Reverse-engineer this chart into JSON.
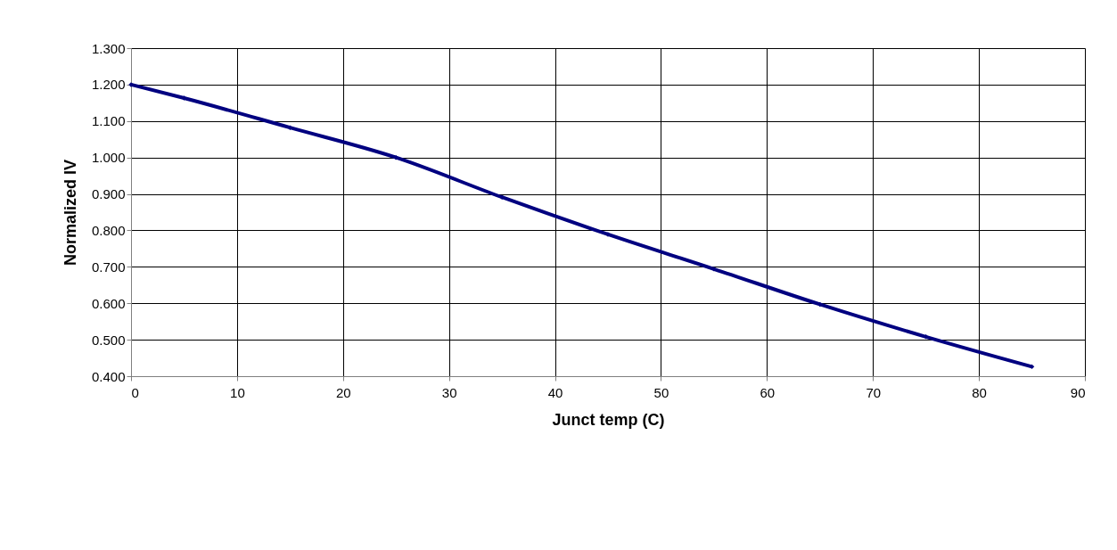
{
  "chart_data": {
    "type": "line",
    "xlabel": "Junct temp (C)",
    "ylabel": "Normalized IV",
    "x": [
      0,
      5,
      15,
      25,
      35,
      45,
      55,
      65,
      75,
      85
    ],
    "series": [
      {
        "color": "#000080",
        "values": [
          1.2,
          1.163,
          1.082,
          1.0,
          0.891,
          0.789,
          0.694,
          0.597,
          0.508,
          0.426
        ]
      }
    ],
    "xlim": [
      0,
      90
    ],
    "xticks": [
      0,
      10,
      20,
      30,
      40,
      50,
      60,
      70,
      80,
      90
    ],
    "ylim": [
      0.4,
      1.3
    ],
    "yticks": [
      {
        "value": 0.4,
        "label": "0.400"
      },
      {
        "value": 0.5,
        "label": "0.500"
      },
      {
        "value": 0.6,
        "label": "0.600"
      },
      {
        "value": 0.7,
        "label": "0.700"
      },
      {
        "value": 0.8,
        "label": "0.800"
      },
      {
        "value": 0.9,
        "label": "0.900"
      },
      {
        "value": 1.0,
        "label": "1.000"
      },
      {
        "value": 1.1,
        "label": "1.100"
      },
      {
        "value": 1.2,
        "label": "1.200"
      },
      {
        "value": 1.3,
        "label": "1.300"
      }
    ],
    "grid": true,
    "marker": "diamond"
  }
}
